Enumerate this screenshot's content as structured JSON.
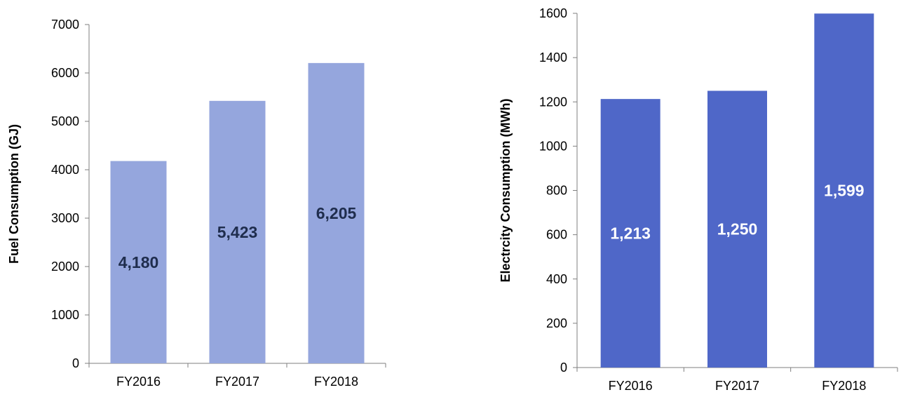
{
  "chart_data": [
    {
      "type": "bar",
      "categories": [
        "FY2016",
        "FY2017",
        "FY2018"
      ],
      "values": [
        4180,
        5423,
        6205
      ],
      "data_labels": [
        "4,180",
        "5,423",
        "6,205"
      ],
      "title": "",
      "xlabel": "",
      "ylabel": "Fuel Consumption (GJ)",
      "ylim": [
        0,
        7000
      ],
      "yticks": [
        0,
        1000,
        2000,
        3000,
        4000,
        5000,
        6000,
        7000
      ],
      "grid": false,
      "bar_color": "#95a6dd",
      "label_color": "#1f2d4d"
    },
    {
      "type": "bar",
      "categories": [
        "FY2016",
        "FY2017",
        "FY2018"
      ],
      "values": [
        1213,
        1250,
        1599
      ],
      "data_labels": [
        "1,213",
        "1,250",
        "1,599"
      ],
      "title": "",
      "xlabel": "",
      "ylabel": "Electrcity Consumption (MWh)",
      "ylim": [
        0,
        1600
      ],
      "yticks": [
        0,
        200,
        400,
        600,
        800,
        1000,
        1200,
        1400,
        1600
      ],
      "grid": false,
      "bar_color": "#4f67c8",
      "label_color": "#ffffff"
    }
  ]
}
